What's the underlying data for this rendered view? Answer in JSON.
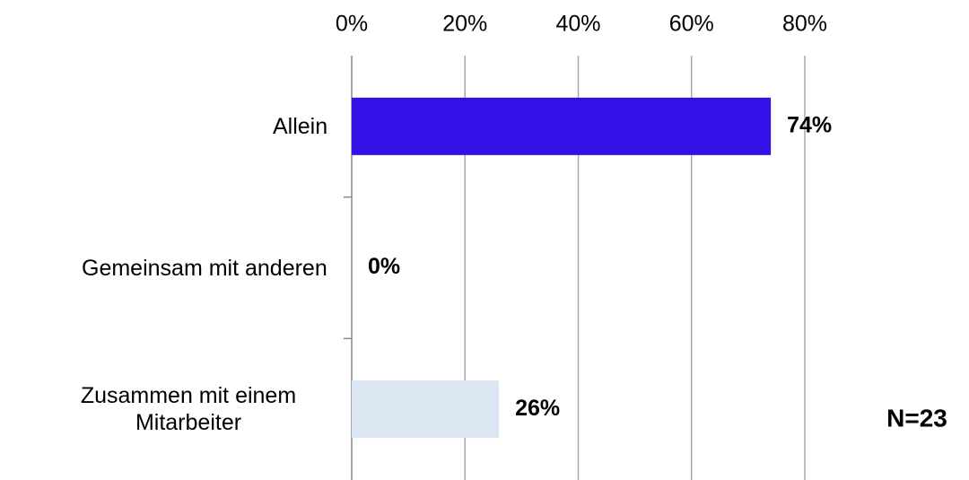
{
  "chart_data": {
    "type": "bar",
    "orientation": "horizontal",
    "categories": [
      "Allein",
      "Gemeinsam mit anderen",
      "Zusammen mit einem Mitarbeiter"
    ],
    "values": [
      74,
      0,
      26
    ],
    "value_labels": [
      "74%",
      "0%",
      "26%"
    ],
    "colors": [
      "#3311e6",
      "#3311e6",
      "#dce6f2"
    ],
    "xlim": [
      0,
      80
    ],
    "xticks": [
      {
        "value": 0,
        "label": "0%"
      },
      {
        "value": 20,
        "label": "20%"
      },
      {
        "value": 40,
        "label": "40%"
      },
      {
        "value": 60,
        "label": "60%"
      },
      {
        "value": 80,
        "label": "80%"
      }
    ],
    "grid": true,
    "annotation": "N=23"
  }
}
